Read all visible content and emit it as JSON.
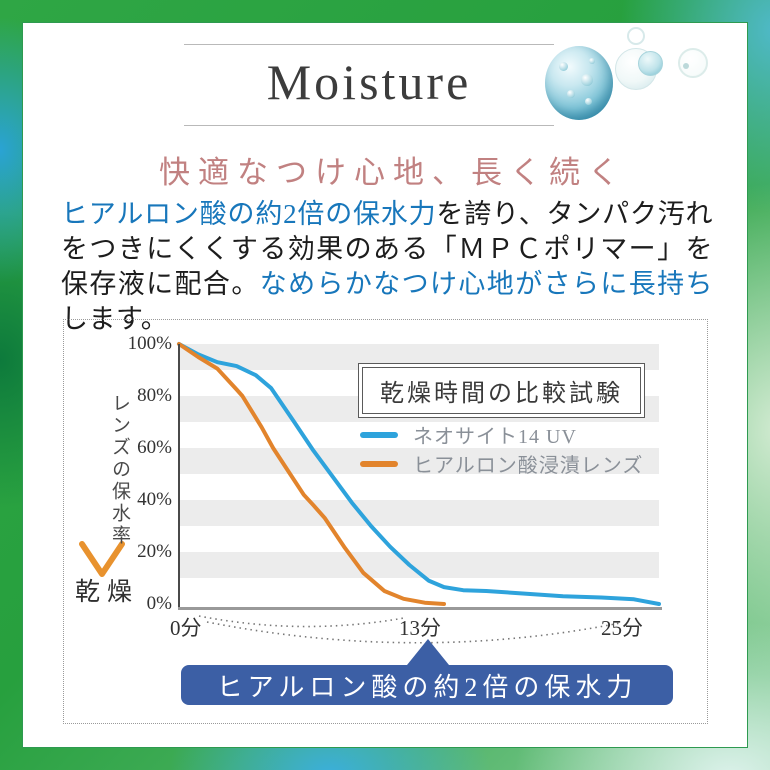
{
  "header": {
    "title": "Moisture"
  },
  "subtitle": "快適なつけ心地、長く続く",
  "paragraph": {
    "segments": [
      {
        "text": "ヒアルロン酸の約2倍の保水力",
        "emphasis": "blue"
      },
      {
        "text": "を誇り、タンパク汚れをつきにくくする効果のある「ＭＰＣポリマー」を保存液に配合。",
        "emphasis": "none"
      },
      {
        "text": "なめらかなつけ心地がさらに長持ち",
        "emphasis": "blue"
      },
      {
        "text": "します。",
        "emphasis": "none"
      }
    ]
  },
  "chart_data": {
    "type": "line",
    "title": "乾燥時間の比較試験",
    "y_axis_label": "レンズの保水率",
    "x_arrow_label": "乾燥",
    "y_ticks": [
      "100%",
      "80%",
      "60%",
      "40%",
      "20%",
      "0%"
    ],
    "x_ticks": [
      "0分",
      "13分",
      "25分"
    ],
    "xlim": [
      0,
      25
    ],
    "ylim": [
      0,
      100
    ],
    "grid": "horizontal 10% bands, alternating gray/white stripes",
    "legend_position": "center-right",
    "series": [
      {
        "name": "ネオサイト14 UV",
        "color": "#2ea3dc",
        "points": [
          [
            0,
            100
          ],
          [
            1,
            96
          ],
          [
            2,
            93
          ],
          [
            3,
            91.5
          ],
          [
            4,
            88
          ],
          [
            4.8,
            83
          ],
          [
            6,
            70
          ],
          [
            7,
            59
          ],
          [
            8,
            49
          ],
          [
            9,
            39
          ],
          [
            10,
            30
          ],
          [
            11,
            22
          ],
          [
            12,
            15
          ],
          [
            13,
            9
          ],
          [
            13.8,
            6.5
          ],
          [
            14.8,
            5.3
          ],
          [
            16,
            5
          ],
          [
            18,
            4
          ],
          [
            20,
            3
          ],
          [
            22,
            2.5
          ],
          [
            23.7,
            1.8
          ],
          [
            25,
            0
          ]
        ]
      },
      {
        "name": "ヒアルロン酸浸漬レンズ",
        "color": "#e2842c",
        "points": [
          [
            0,
            100
          ],
          [
            1,
            95
          ],
          [
            2,
            90.5
          ],
          [
            3,
            82.5
          ],
          [
            3.3,
            80
          ],
          [
            4.3,
            68
          ],
          [
            4.9,
            60
          ],
          [
            5.7,
            51
          ],
          [
            6.5,
            42
          ],
          [
            7,
            38
          ],
          [
            7.6,
            33
          ],
          [
            8.6,
            22
          ],
          [
            9.6,
            12
          ],
          [
            10.7,
            5
          ],
          [
            11.7,
            2
          ],
          [
            12.8,
            0.5
          ],
          [
            13.8,
            0
          ]
        ]
      }
    ]
  },
  "banner": {
    "label": "ヒアルロン酸の約2倍の保水力"
  },
  "colors": {
    "subtitle_pink": "#c18181",
    "body_blue": "#1877bb",
    "body_dark": "#1d1d1d",
    "line_blue": "#2ea3dc",
    "line_orange": "#e2842c",
    "banner_blue": "#3c5fa5",
    "stripe_gray": "#ececec",
    "frame_green": "#2fa645",
    "frame_cyan": "#2aa3d4"
  }
}
